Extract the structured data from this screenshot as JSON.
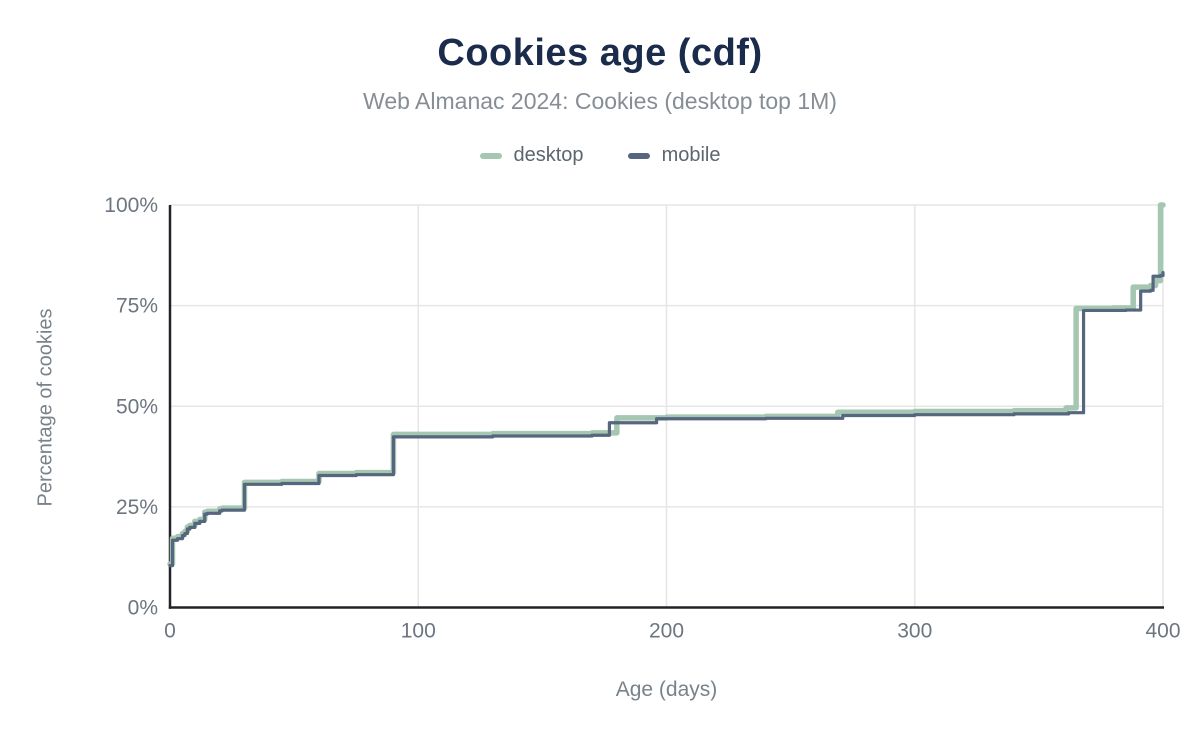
{
  "header": {
    "title": "Cookies age (cdf)",
    "subtitle": "Web Almanac 2024: Cookies (desktop top 1M)"
  },
  "legend": {
    "items": [
      {
        "label": "desktop",
        "color": "#a5c6b1"
      },
      {
        "label": "mobile",
        "color": "#55667e"
      }
    ]
  },
  "axes": {
    "x_label": "Age (days)",
    "y_label": "Percentage of cookies"
  },
  "colors": {
    "title": "#1b2b4b",
    "subtitle": "#868d94",
    "grid": "#e6e6e6",
    "axis_line": "#212329",
    "tick_label": "#6d7680",
    "desktop_series": "#a5c6b1",
    "mobile_series": "#55667e",
    "background": "#ffffff"
  },
  "chart_data": {
    "type": "line",
    "step": "after",
    "title": "Cookies age (cdf)",
    "subtitle": "Web Almanac 2024: Cookies (desktop top 1M)",
    "xlabel": "Age (days)",
    "ylabel": "Percentage of cookies",
    "xlim": [
      0,
      400
    ],
    "ylim": [
      0,
      100
    ],
    "x_ticks": [
      0,
      100,
      200,
      300,
      400
    ],
    "x_tick_labels": [
      "0",
      "100",
      "200",
      "300",
      "400"
    ],
    "y_ticks": [
      0,
      25,
      50,
      75,
      100
    ],
    "y_tick_labels": [
      "0%",
      "25%",
      "50%",
      "75%",
      "100%"
    ],
    "grid": true,
    "legend_position": "top",
    "series": [
      {
        "name": "desktop",
        "color": "#a5c6b1",
        "stroke_width": 5.5,
        "points": [
          [
            0,
            10.8
          ],
          [
            1,
            17.2
          ],
          [
            3,
            17.6
          ],
          [
            5,
            18.4
          ],
          [
            6,
            18.9
          ],
          [
            7,
            20.0
          ],
          [
            8,
            20.4
          ],
          [
            10,
            21.4
          ],
          [
            12,
            21.9
          ],
          [
            14,
            23.7
          ],
          [
            15,
            23.9
          ],
          [
            20,
            24.5
          ],
          [
            21,
            24.7
          ],
          [
            30,
            31.1
          ],
          [
            45,
            31.3
          ],
          [
            60,
            33.3
          ],
          [
            75,
            33.5
          ],
          [
            90,
            43.0
          ],
          [
            130,
            43.2
          ],
          [
            170,
            43.4
          ],
          [
            180,
            47.1
          ],
          [
            200,
            47.3
          ],
          [
            240,
            47.5
          ],
          [
            269,
            48.5
          ],
          [
            300,
            48.7
          ],
          [
            340,
            48.9
          ],
          [
            361,
            49.6
          ],
          [
            365,
            74.3
          ],
          [
            380,
            74.4
          ],
          [
            388,
            79.6
          ],
          [
            395,
            80.0
          ],
          [
            397,
            81.2
          ],
          [
            399,
            100.0
          ],
          [
            400,
            100.0
          ]
        ]
      },
      {
        "name": "mobile",
        "color": "#55667e",
        "stroke_width": 3.2,
        "points": [
          [
            0,
            10.4
          ],
          [
            1,
            16.7
          ],
          [
            3,
            17.1
          ],
          [
            5,
            17.9
          ],
          [
            6,
            18.4
          ],
          [
            7,
            19.5
          ],
          [
            8,
            19.9
          ],
          [
            10,
            20.9
          ],
          [
            12,
            21.4
          ],
          [
            14,
            23.2
          ],
          [
            15,
            23.4
          ],
          [
            20,
            24.0
          ],
          [
            21,
            24.2
          ],
          [
            30,
            30.6
          ],
          [
            45,
            30.8
          ],
          [
            60,
            32.8
          ],
          [
            75,
            33.0
          ],
          [
            90,
            42.4
          ],
          [
            130,
            42.6
          ],
          [
            170,
            42.8
          ],
          [
            177,
            45.9
          ],
          [
            196,
            46.9
          ],
          [
            240,
            47.0
          ],
          [
            271,
            47.7
          ],
          [
            300,
            47.9
          ],
          [
            340,
            48.1
          ],
          [
            362,
            48.4
          ],
          [
            368,
            73.8
          ],
          [
            385,
            73.9
          ],
          [
            391,
            78.6
          ],
          [
            395,
            78.8
          ],
          [
            396,
            82.3
          ],
          [
            399,
            82.5
          ],
          [
            400,
            83.2
          ]
        ]
      }
    ]
  }
}
